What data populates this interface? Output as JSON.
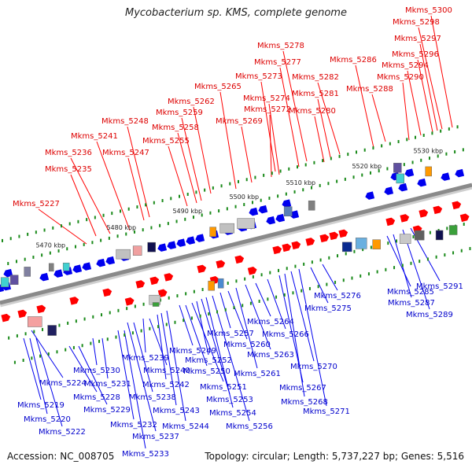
{
  "title": "Mycobacterium sp. KMS, complete genome",
  "footer": {
    "accession": "Accession: NC_008705",
    "summary": "Topology: circular; Length: 5,737,227 bp; Genes: 5,516"
  },
  "colors": {
    "forward": "#ff0000",
    "reverse": "#0000ee",
    "forward_label": "#dd0000",
    "reverse_label": "#0000cc",
    "backbone": "#8a8a8a",
    "tick": "#1a8a1a"
  },
  "kbp_ticks": [
    "5470 kbp",
    "5480 kbp",
    "5490 kbp",
    "5500 kbp",
    "5510 kbp",
    "5520 kbp",
    "5530 kbp"
  ],
  "forward_labels": [
    "Mkms_5227",
    "Mkms_5235",
    "Mkms_5236",
    "Mkms_5241",
    "Mkms_5247",
    "Mkms_5248",
    "Mkms_5255",
    "Mkms_5258",
    "Mkms_5259",
    "Mkms_5262",
    "Mkms_5265",
    "Mkms_5269",
    "Mkms_5272",
    "Mkms_5274",
    "Mkms_5273",
    "Mkms_5277",
    "Mkms_5278",
    "Mkms_5280",
    "Mkms_5281",
    "Mkms_5282",
    "Mkms_5286",
    "Mkms_5288",
    "Mkms_5290",
    "Mkms_5294",
    "Mkms_5296",
    "Mkms_5297",
    "Mkms_5298",
    "Mkms_5300"
  ],
  "reverse_labels": [
    "Mkms_5219",
    "Mkms_5220",
    "Mkms_5222",
    "Mkms_5224",
    "Mkms_5228",
    "Mkms_5229",
    "Mkms_5230",
    "Mkms_5231",
    "Mkms_5232",
    "Mkms_5233",
    "Mkms_5237",
    "Mkms_5238",
    "Mkms_5239",
    "Mkms_5240",
    "Mkms_5242",
    "Mkms_5243",
    "Mkms_5244",
    "Mkms_5249",
    "Mkms_5250",
    "Mkms_5251",
    "Mkms_5252",
    "Mkms_5253",
    "Mkms_5254",
    "Mkms_5256",
    "Mkms_5257",
    "Mkms_5260",
    "Mkms_5261",
    "Mkms_5263",
    "Mkms_5264",
    "Mkms_5266",
    "Mkms_5267",
    "Mkms_5268",
    "Mkms_5270",
    "Mkms_5271",
    "Mkms_5275",
    "Mkms_5276",
    "Mkms_5285",
    "Mkms_5287",
    "Mkms_5289",
    "Mkms_5291"
  ]
}
